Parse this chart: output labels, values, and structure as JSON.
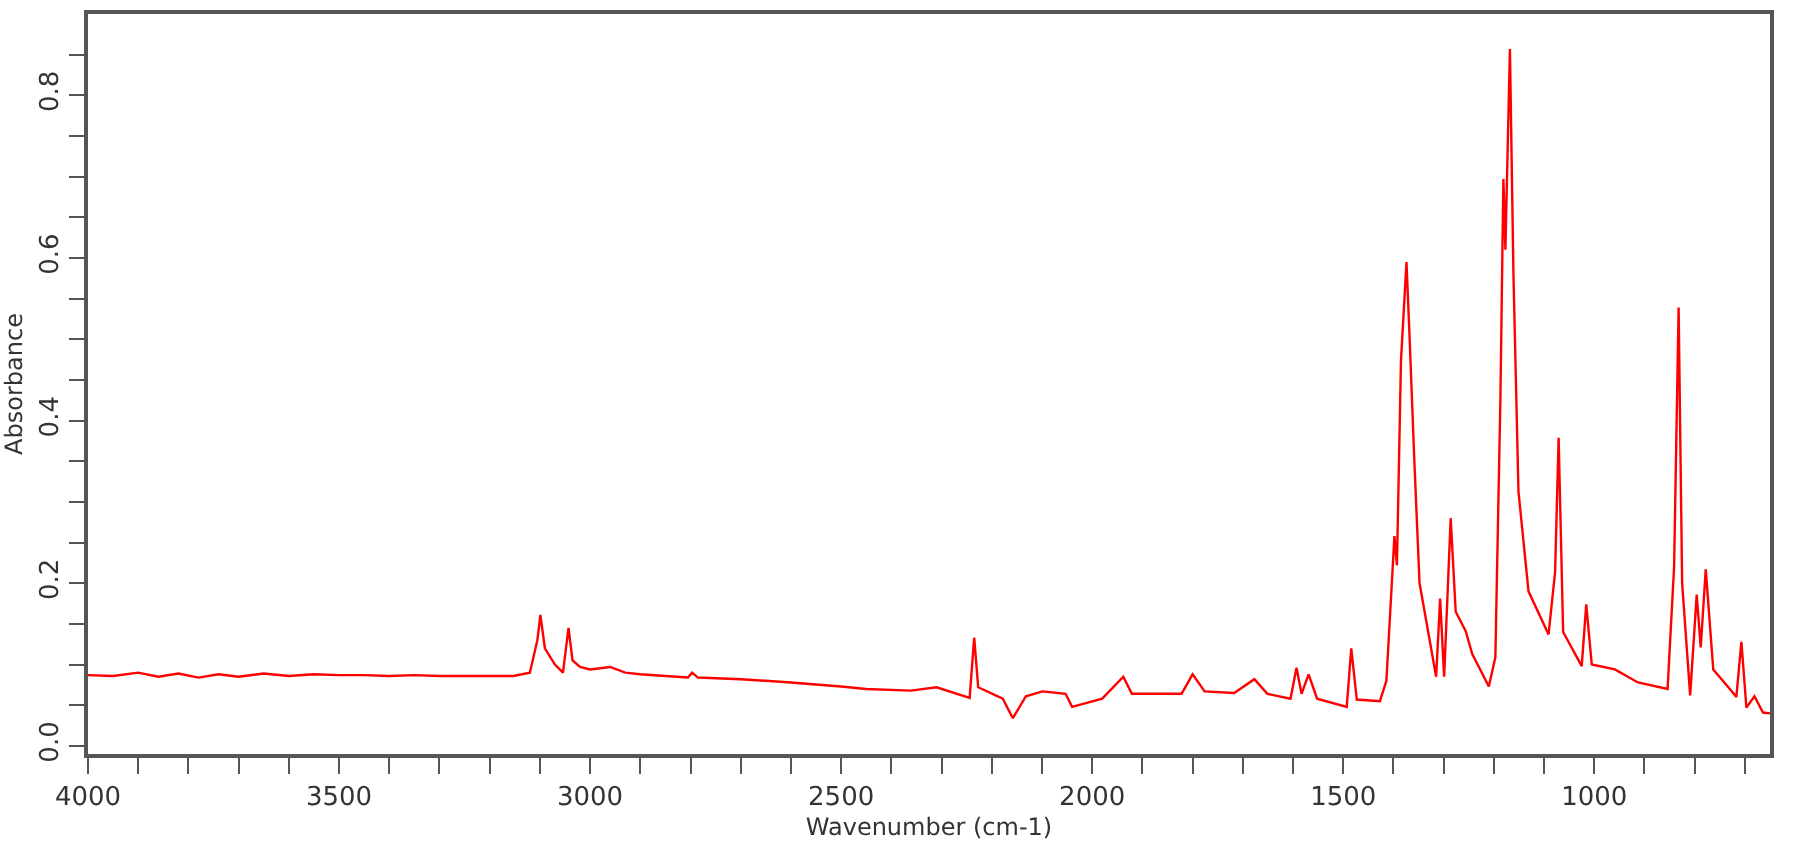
{
  "chart_data": {
    "type": "line",
    "xlabel": "Wavenumber (cm-1)",
    "ylabel": "Absorbance",
    "x": [
      4000,
      3950,
      3900,
      3860,
      3820,
      3780,
      3740,
      3700,
      3650,
      3600,
      3550,
      3500,
      3450,
      3400,
      3350,
      3300,
      3200,
      3153,
      3120,
      3105,
      3099,
      3090,
      3070,
      3054,
      3043,
      3035,
      3020,
      3000,
      2960,
      2930,
      2900,
      2850,
      2805,
      2797,
      2785,
      2700,
      2600,
      2500,
      2450,
      2361,
      2310,
      2244,
      2235,
      2227,
      2178,
      2158,
      2132,
      2099,
      2053,
      2040,
      1980,
      1938,
      1921,
      1822,
      1800,
      1776,
      1717,
      1677,
      1651,
      1605,
      1593,
      1583,
      1569,
      1552,
      1493,
      1484,
      1473,
      1427,
      1414,
      1398,
      1393,
      1385,
      1374,
      1368,
      1358,
      1348,
      1315,
      1307,
      1299,
      1286,
      1276,
      1256,
      1243,
      1210,
      1197,
      1187,
      1181,
      1177,
      1168,
      1161,
      1151,
      1131,
      1091,
      1078,
      1071,
      1062,
      1025,
      1016,
      1005,
      959,
      913,
      854,
      841,
      832,
      825,
      809,
      796,
      788,
      778,
      763,
      730,
      717,
      707,
      697,
      681,
      664,
      650
    ],
    "series": [
      {
        "color": "#ff0000",
        "values": [
          0.087,
          0.086,
          0.09,
          0.085,
          0.089,
          0.084,
          0.088,
          0.085,
          0.089,
          0.086,
          0.088,
          0.087,
          0.087,
          0.086,
          0.087,
          0.086,
          0.086,
          0.086,
          0.09,
          0.13,
          0.161,
          0.12,
          0.1,
          0.09,
          0.145,
          0.105,
          0.097,
          0.094,
          0.097,
          0.09,
          0.088,
          0.086,
          0.084,
          0.09,
          0.084,
          0.082,
          0.078,
          0.073,
          0.07,
          0.068,
          0.072,
          0.059,
          0.133,
          0.072,
          0.058,
          0.034,
          0.061,
          0.067,
          0.064,
          0.048,
          0.058,
          0.085,
          0.064,
          0.064,
          0.088,
          0.067,
          0.065,
          0.082,
          0.064,
          0.058,
          0.096,
          0.064,
          0.088,
          0.058,
          0.048,
          0.12,
          0.057,
          0.055,
          0.08,
          0.258,
          0.222,
          0.473,
          0.595,
          0.505,
          0.345,
          0.2,
          0.085,
          0.181,
          0.085,
          0.28,
          0.165,
          0.141,
          0.113,
          0.073,
          0.109,
          0.425,
          0.697,
          0.61,
          0.857,
          0.58,
          0.313,
          0.19,
          0.137,
          0.214,
          0.379,
          0.14,
          0.098,
          0.174,
          0.1,
          0.094,
          0.078,
          0.07,
          0.22,
          0.539,
          0.2,
          0.062,
          0.186,
          0.121,
          0.217,
          0.094,
          0.07,
          0.06,
          0.128,
          0.047,
          0.061,
          0.041,
          0.04
        ]
      }
    ],
    "xlim": [
      4000,
      650
    ],
    "xticks": [
      4000,
      {
        "value": 3900,
        "label": null
      },
      {
        "value": 3800,
        "label": null
      },
      {
        "value": 3700,
        "label": null
      },
      {
        "value": 3600,
        "label": null
      },
      3500,
      {
        "value": 3400,
        "label": null
      },
      {
        "value": 3300,
        "label": null
      },
      {
        "value": 3200,
        "label": null
      },
      {
        "value": 3100,
        "label": null
      },
      3000,
      {
        "value": 2900,
        "label": null
      },
      {
        "value": 2800,
        "label": null
      },
      {
        "value": 2700,
        "label": null
      },
      {
        "value": 2600,
        "label": null
      },
      2500,
      {
        "value": 2400,
        "label": null
      },
      {
        "value": 2300,
        "label": null
      },
      {
        "value": 2200,
        "label": null
      },
      {
        "value": 2100,
        "label": null
      },
      2000,
      {
        "value": 1900,
        "label": null
      },
      {
        "value": 1800,
        "label": null
      },
      {
        "value": 1700,
        "label": null
      },
      {
        "value": 1600,
        "label": null
      },
      1500,
      {
        "value": 1400,
        "label": null
      },
      {
        "value": 1300,
        "label": null
      },
      {
        "value": 1200,
        "label": null
      },
      {
        "value": 1100,
        "label": null
      },
      1000,
      {
        "value": 900,
        "label": null
      },
      {
        "value": 800,
        "label": null
      },
      {
        "value": 700,
        "label": null
      }
    ],
    "ylim": [
      -0.01,
      0.9
    ],
    "yticks": [
      {
        "value": 0,
        "label": "0.0"
      },
      {
        "value": 0.05,
        "label": null
      },
      {
        "value": 0.1,
        "label": null
      },
      {
        "value": 0.15,
        "label": null
      },
      0.2,
      {
        "value": 0.25,
        "label": null
      },
      {
        "value": 0.3,
        "label": null
      },
      {
        "value": 0.35,
        "label": null
      },
      0.4,
      {
        "value": 0.45,
        "label": null
      },
      {
        "value": 0.5,
        "label": null
      },
      {
        "value": 0.55,
        "label": null
      },
      0.6,
      {
        "value": 0.65,
        "label": null
      },
      {
        "value": 0.7,
        "label": null
      },
      {
        "value": 0.75,
        "label": null
      },
      0.8,
      {
        "value": 0.85,
        "label": null
      }
    ],
    "marker": "none",
    "line_style": "solid"
  }
}
